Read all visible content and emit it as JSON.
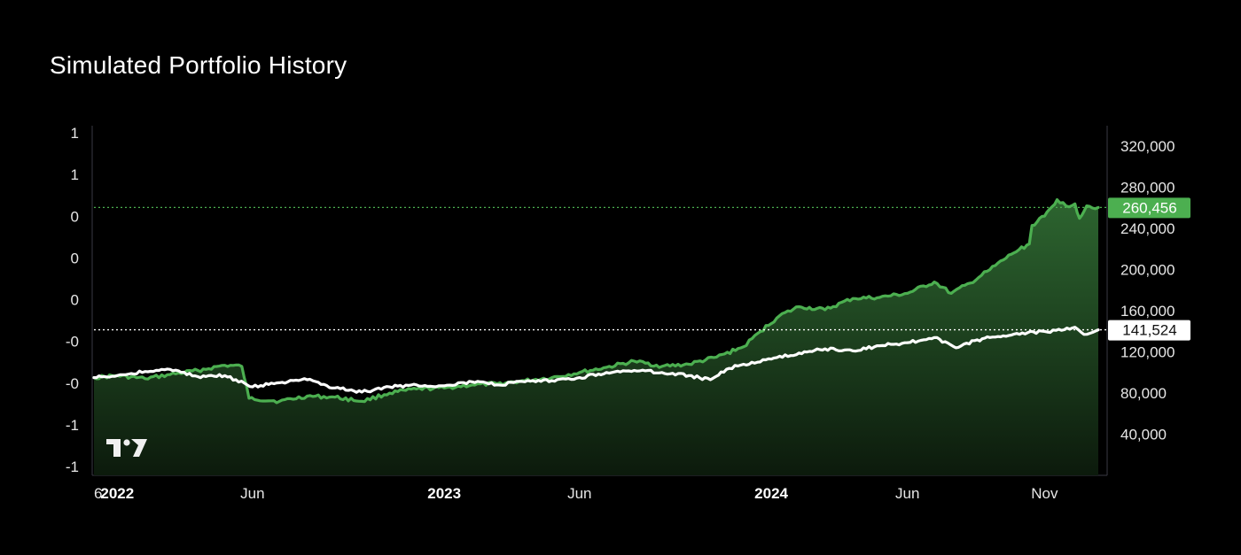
{
  "page": {
    "title": "Simulated Portfolio History"
  },
  "chart_data": {
    "type": "line",
    "title": "Simulated Portfolio History",
    "x_axis": {
      "start": "2021-12-06",
      "end": "2024-12-31",
      "ticks": [
        {
          "date": "2021-12-06",
          "label": "6",
          "bold": false
        },
        {
          "date": "2022-01-01",
          "label": "2022",
          "bold": true
        },
        {
          "date": "2022-06-01",
          "label": "Jun",
          "bold": false
        },
        {
          "date": "2023-01-01",
          "label": "2023",
          "bold": true
        },
        {
          "date": "2023-06-01",
          "label": "Jun",
          "bold": false
        },
        {
          "date": "2024-01-01",
          "label": "2024",
          "bold": true
        },
        {
          "date": "2024-06-01",
          "label": "Jun",
          "bold": false
        },
        {
          "date": "2024-11-01",
          "label": "Nov",
          "bold": false
        }
      ]
    },
    "left_axis": {
      "labels": [
        "1",
        "1",
        "0",
        "0",
        "0",
        "-0",
        "-0",
        "-1",
        "-1"
      ]
    },
    "right_axis": {
      "ylim": [
        0,
        340000
      ],
      "ticks": [
        40000,
        80000,
        120000,
        160000,
        200000,
        240000,
        280000,
        320000
      ],
      "tick_labels": [
        "40,000",
        "80,000",
        "120,000",
        "160,000",
        "200,000",
        "240,000",
        "280,000",
        "320,000"
      ]
    },
    "series": [
      {
        "color": "#4caf50",
        "fill": true,
        "last_value": 260456,
        "last_label": "260,456",
        "points": [
          [
            "2021-12-06",
            95000
          ],
          [
            "2022-01-01",
            97000
          ],
          [
            "2022-02-01",
            94000
          ],
          [
            "2022-03-01",
            98000
          ],
          [
            "2022-04-01",
            102000
          ],
          [
            "2022-05-01",
            107000
          ],
          [
            "2022-05-20",
            106000
          ],
          [
            "2022-05-28",
            75000
          ],
          [
            "2022-07-01",
            72000
          ],
          [
            "2022-08-01",
            77000
          ],
          [
            "2022-09-01",
            76000
          ],
          [
            "2022-10-01",
            72000
          ],
          [
            "2022-11-01",
            80000
          ],
          [
            "2022-12-01",
            84000
          ],
          [
            "2023-01-01",
            85000
          ],
          [
            "2023-02-01",
            88000
          ],
          [
            "2023-03-01",
            89000
          ],
          [
            "2023-04-01",
            92000
          ],
          [
            "2023-05-01",
            95000
          ],
          [
            "2023-06-01",
            100000
          ],
          [
            "2023-07-01",
            105000
          ],
          [
            "2023-08-01",
            111000
          ],
          [
            "2023-09-01",
            106000
          ],
          [
            "2023-10-01",
            108000
          ],
          [
            "2023-11-01",
            115000
          ],
          [
            "2023-12-01",
            125000
          ],
          [
            "2023-12-20",
            140000
          ],
          [
            "2024-01-10",
            155000
          ],
          [
            "2024-02-01",
            164000
          ],
          [
            "2024-03-01",
            161000
          ],
          [
            "2024-04-01",
            172000
          ],
          [
            "2024-05-01",
            173000
          ],
          [
            "2024-06-01",
            177000
          ],
          [
            "2024-07-01",
            188000
          ],
          [
            "2024-07-20",
            177000
          ],
          [
            "2024-08-10",
            187000
          ],
          [
            "2024-09-01",
            200000
          ],
          [
            "2024-09-25",
            215000
          ],
          [
            "2024-10-15",
            225000
          ],
          [
            "2024-10-18",
            243000
          ],
          [
            "2024-11-01",
            252000
          ],
          [
            "2024-11-15",
            268000
          ],
          [
            "2024-11-25",
            262000
          ],
          [
            "2024-12-05",
            264000
          ],
          [
            "2024-12-10",
            250000
          ],
          [
            "2024-12-18",
            262000
          ],
          [
            "2024-12-31",
            260456
          ]
        ]
      },
      {
        "color": "#ffffff",
        "fill": false,
        "last_value": 141524,
        "last_label": "141,524",
        "points": [
          [
            "2021-12-06",
            95000
          ],
          [
            "2022-01-01",
            97000
          ],
          [
            "2022-02-01",
            101000
          ],
          [
            "2022-03-01",
            103000
          ],
          [
            "2022-04-01",
            96000
          ],
          [
            "2022-05-01",
            97000
          ],
          [
            "2022-06-01",
            86000
          ],
          [
            "2022-07-01",
            90000
          ],
          [
            "2022-08-01",
            93000
          ],
          [
            "2022-09-01",
            85000
          ],
          [
            "2022-10-01",
            81000
          ],
          [
            "2022-11-01",
            86000
          ],
          [
            "2022-12-01",
            88000
          ],
          [
            "2023-01-01",
            87000
          ],
          [
            "2023-02-01",
            91000
          ],
          [
            "2023-03-01",
            88000
          ],
          [
            "2023-04-01",
            91000
          ],
          [
            "2023-05-01",
            92000
          ],
          [
            "2023-06-01",
            95000
          ],
          [
            "2023-07-01",
            100000
          ],
          [
            "2023-08-01",
            102000
          ],
          [
            "2023-09-01",
            100000
          ],
          [
            "2023-10-01",
            97000
          ],
          [
            "2023-10-25",
            93000
          ],
          [
            "2023-11-15",
            104000
          ],
          [
            "2023-12-01",
            108000
          ],
          [
            "2024-01-01",
            113000
          ],
          [
            "2024-02-01",
            119000
          ],
          [
            "2024-03-01",
            123000
          ],
          [
            "2024-04-01",
            121000
          ],
          [
            "2024-05-01",
            126000
          ],
          [
            "2024-06-01",
            129000
          ],
          [
            "2024-07-01",
            134000
          ],
          [
            "2024-07-25",
            124000
          ],
          [
            "2024-08-15",
            131000
          ],
          [
            "2024-09-01",
            134000
          ],
          [
            "2024-10-01",
            138000
          ],
          [
            "2024-11-01",
            140000
          ],
          [
            "2024-11-20",
            141000
          ],
          [
            "2024-12-05",
            144000
          ],
          [
            "2024-12-15",
            137000
          ],
          [
            "2024-12-31",
            141524
          ]
        ]
      }
    ],
    "grid": false,
    "legend": "none"
  }
}
